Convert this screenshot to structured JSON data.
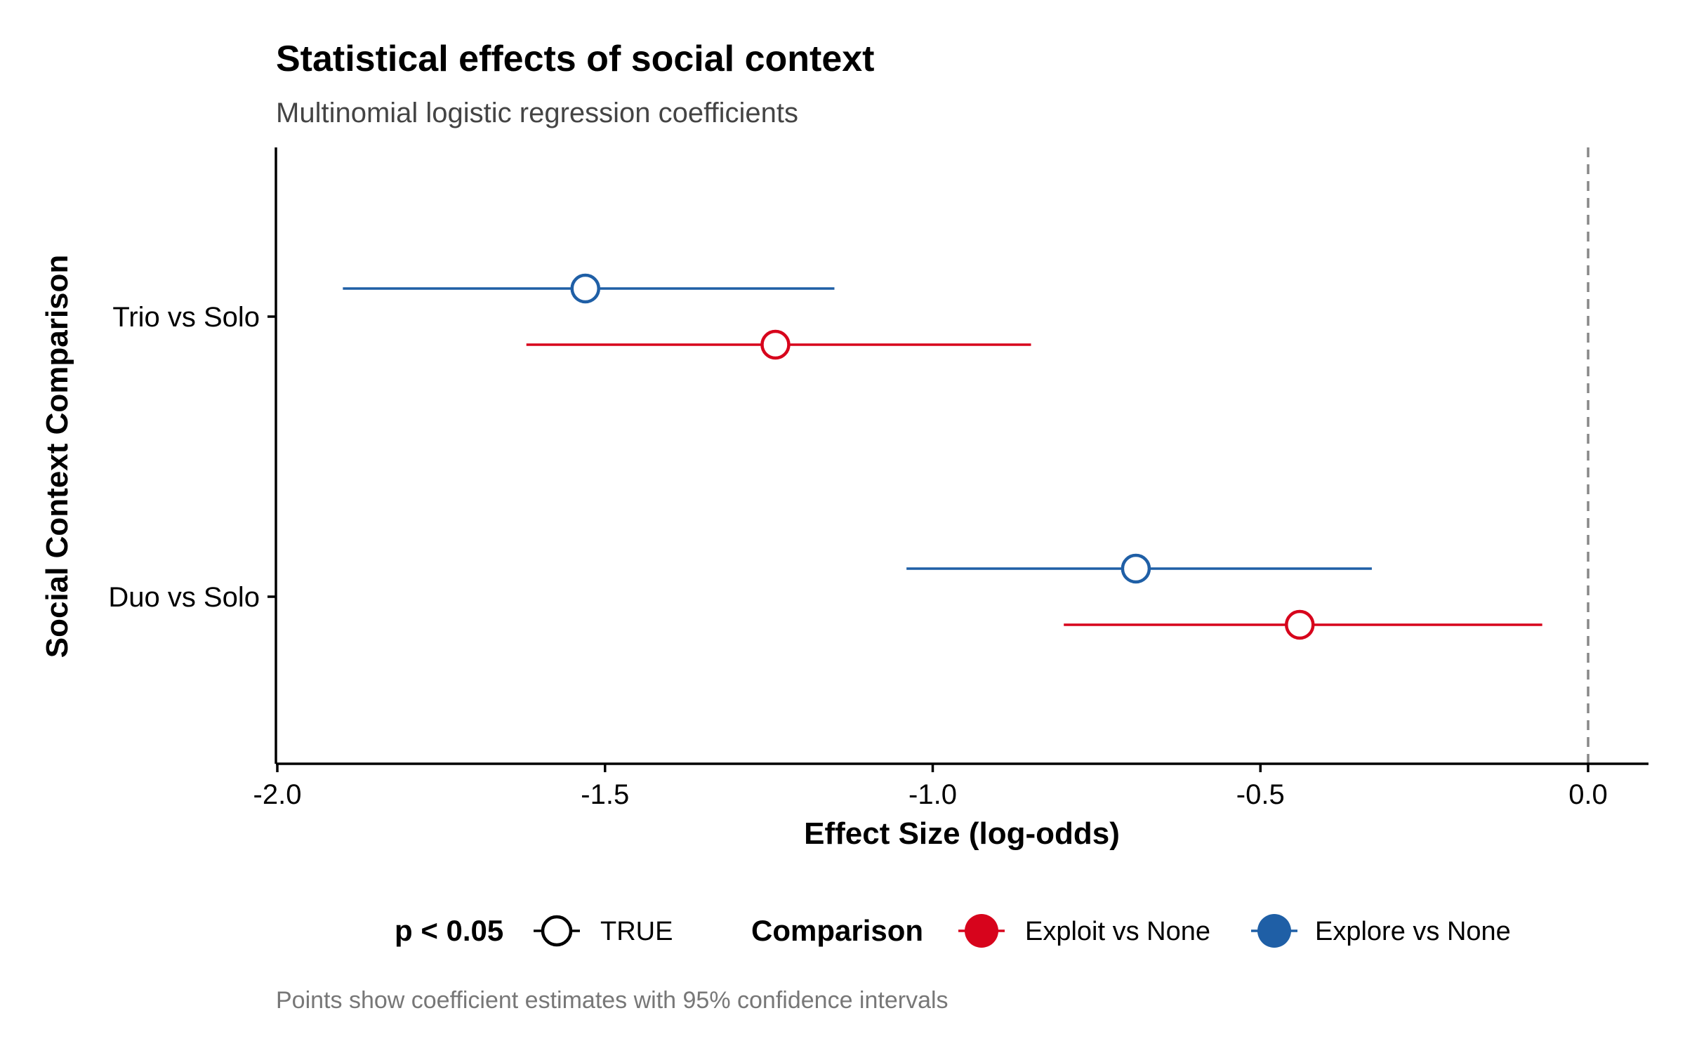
{
  "chart_data": {
    "type": "errorbar",
    "title": "Statistical effects of social context",
    "subtitle": "Multinomial logistic regression coefficients",
    "caption": "Points show coefficient estimates with 95% confidence intervals",
    "xlabel": "Effect Size (log-odds)",
    "ylabel": "Social Context Comparison",
    "xlim": [
      -2.0,
      0.0
    ],
    "xticks": [
      "-2.0",
      "-1.5",
      "-1.0",
      "-0.5",
      "0.0"
    ],
    "categories": [
      "Trio vs Solo",
      "Duo vs Solo"
    ],
    "reference_line": {
      "x": 0.0,
      "style": "dashed",
      "color": "#888888"
    },
    "grid": false,
    "series": [
      {
        "name": "Explore vs None",
        "color": "#1F5FA6",
        "points": [
          {
            "category": "Trio vs Solo",
            "estimate": -1.53,
            "ci_low": -1.9,
            "ci_high": -1.15,
            "significant": true
          },
          {
            "category": "Duo vs Solo",
            "estimate": -0.69,
            "ci_low": -1.04,
            "ci_high": -0.33,
            "significant": true
          }
        ]
      },
      {
        "name": "Exploit vs None",
        "color": "#D7041C",
        "points": [
          {
            "category": "Trio vs Solo",
            "estimate": -1.24,
            "ci_low": -1.62,
            "ci_high": -0.85,
            "significant": true
          },
          {
            "category": "Duo vs Solo",
            "estimate": -0.44,
            "ci_low": -0.8,
            "ci_high": -0.07,
            "significant": true
          }
        ]
      }
    ],
    "legend": {
      "placement": "bottom",
      "significance": {
        "title": "p < 0.05",
        "label": "TRUE"
      },
      "comparison": {
        "title": "Comparison",
        "items": [
          "Exploit vs None",
          "Explore vs None"
        ]
      }
    }
  }
}
